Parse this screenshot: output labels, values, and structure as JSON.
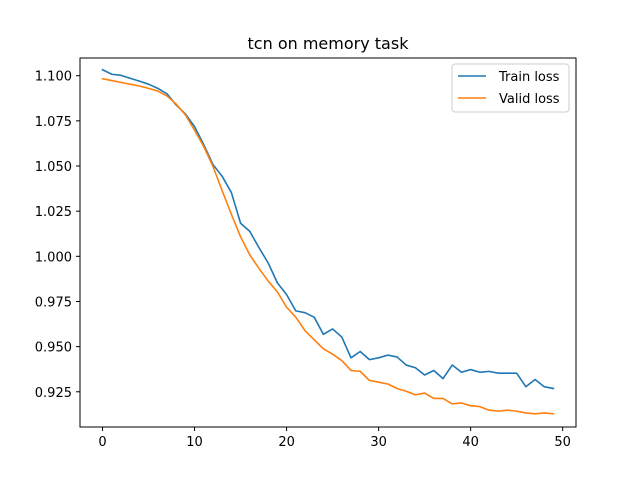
{
  "chart_data": {
    "type": "line",
    "title": "tcn on memory task",
    "xlabel": "",
    "ylabel": "",
    "xlim": [
      -2.45,
      51.45
    ],
    "ylim": [
      0.9055,
      1.1098
    ],
    "xticks": [
      0,
      10,
      20,
      30,
      40,
      50
    ],
    "yticks": [
      0.925,
      0.95,
      0.975,
      1.0,
      1.025,
      1.05,
      1.075,
      1.1
    ],
    "ytick_labels": [
      "0.925",
      "0.950",
      "0.975",
      "1.000",
      "1.025",
      "1.050",
      "1.075",
      "1.100"
    ],
    "grid": false,
    "legend_position": "top-right",
    "x": [
      0,
      1,
      2,
      3,
      4,
      5,
      6,
      7,
      8,
      9,
      10,
      11,
      12,
      13,
      14,
      15,
      16,
      17,
      18,
      19,
      20,
      21,
      22,
      23,
      24,
      25,
      26,
      27,
      28,
      29,
      30,
      31,
      32,
      33,
      34,
      35,
      36,
      37,
      38,
      39,
      40,
      41,
      42,
      43,
      44,
      45,
      46,
      47,
      48,
      49
    ],
    "series": [
      {
        "name": "Train loss",
        "color": "#1f77b4",
        "values": [
          1.1033,
          1.1008,
          1.1002,
          1.0986,
          1.097,
          1.0953,
          1.093,
          1.09,
          1.0838,
          1.0788,
          1.0718,
          1.0618,
          1.0508,
          1.0443,
          1.0353,
          1.0183,
          1.0138,
          1.0048,
          0.9963,
          0.9853,
          0.9788,
          0.9698,
          0.9688,
          0.9663,
          0.9568,
          0.9598,
          0.9553,
          0.9438,
          0.9473,
          0.9428,
          0.9438,
          0.9453,
          0.9443,
          0.9398,
          0.9383,
          0.9343,
          0.9368,
          0.9323,
          0.9398,
          0.9358,
          0.9373,
          0.9358,
          0.9363,
          0.9353,
          0.9353,
          0.9353,
          0.9278,
          0.9318,
          0.9278,
          0.9268
        ]
      },
      {
        "name": "Valid loss",
        "color": "#ff7f0e",
        "values": [
          1.0983,
          1.0973,
          1.0963,
          1.0953,
          1.0943,
          1.093,
          1.0915,
          1.0888,
          1.0843,
          1.0783,
          1.0698,
          1.0608,
          1.0498,
          1.0363,
          1.0233,
          1.0108,
          1.0008,
          0.9933,
          0.9863,
          0.9803,
          0.9718,
          0.9663,
          0.9588,
          0.9538,
          0.9488,
          0.9458,
          0.9423,
          0.9368,
          0.9363,
          0.9313,
          0.9303,
          0.9293,
          0.9268,
          0.9253,
          0.9233,
          0.9243,
          0.9213,
          0.9213,
          0.9183,
          0.9188,
          0.9173,
          0.9168,
          0.9148,
          0.9143,
          0.9148,
          0.9143,
          0.9133,
          0.9128,
          0.9133,
          0.9128
        ]
      }
    ]
  }
}
